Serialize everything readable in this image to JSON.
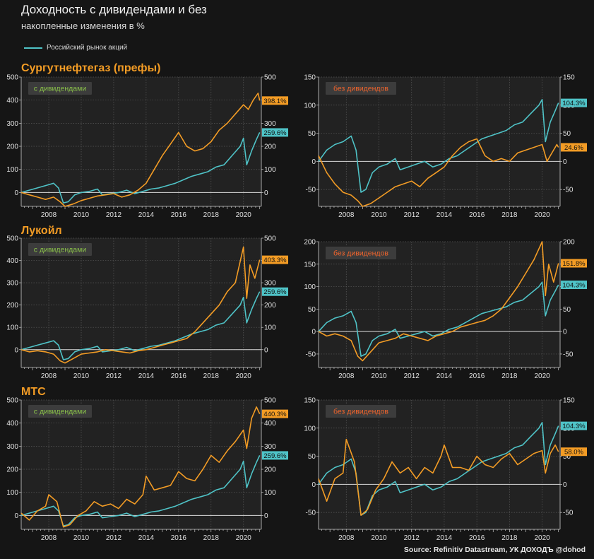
{
  "title": "Доходность с дивидендами и без",
  "subtitle": "накопленные изменения в %",
  "legend": {
    "label": "Российский рынок акций",
    "color": "#4fc3c7"
  },
  "source": "Source: Refinitiv Datastream, УК ДОХОДЪ @dohod",
  "colors": {
    "market": "#4fc3c7",
    "stock": "#f39c25",
    "with_div_tag": "#8bc34a",
    "without_div_tag": "#f0642c"
  },
  "chart_data": [
    {
      "type": "line",
      "company": "Сургутнефтегаз (префы)",
      "tag": "с дивидендами",
      "xlim": [
        2006.3,
        2021.1
      ],
      "ylim": [
        -60,
        500
      ],
      "yticks": [
        0,
        100,
        200,
        300,
        400,
        500
      ],
      "xticks": [
        "2008",
        "2010",
        "2012",
        "2014",
        "2016",
        "2018",
        "2020"
      ],
      "series": [
        {
          "name": "Российский рынок акций",
          "end_label": "259.6%",
          "x": [
            2006.3,
            2006.8,
            2007.3,
            2007.8,
            2008.3,
            2008.6,
            2008.9,
            2009.2,
            2009.6,
            2010.0,
            2010.5,
            2011.0,
            2011.3,
            2011.8,
            2012.3,
            2012.8,
            2013.3,
            2013.8,
            2014.3,
            2014.8,
            2015.3,
            2015.8,
            2016.3,
            2016.8,
            2017.3,
            2017.8,
            2018.3,
            2018.8,
            2019.3,
            2019.8,
            2020.0,
            2020.2,
            2020.5,
            2020.8,
            2021.0
          ],
          "y": [
            0,
            10,
            20,
            30,
            40,
            20,
            -45,
            -40,
            -10,
            0,
            5,
            15,
            -10,
            -5,
            0,
            10,
            -5,
            5,
            15,
            20,
            30,
            40,
            55,
            70,
            80,
            90,
            110,
            120,
            160,
            200,
            235,
            120,
            180,
            230,
            260
          ]
        },
        {
          "name": "",
          "end_label": "398.1%",
          "x": [
            2006.3,
            2006.8,
            2007.3,
            2007.8,
            2008.3,
            2008.7,
            2009.0,
            2009.5,
            2010.0,
            2010.5,
            2011.0,
            2011.5,
            2012.0,
            2012.5,
            2013.0,
            2013.5,
            2014.0,
            2014.5,
            2015.0,
            2015.5,
            2016.0,
            2016.5,
            2017.0,
            2017.5,
            2018.0,
            2018.5,
            2019.0,
            2019.5,
            2020.0,
            2020.3,
            2020.6,
            2020.9,
            2021.0
          ],
          "y": [
            0,
            -10,
            -20,
            -30,
            -20,
            -40,
            -60,
            -50,
            -35,
            -25,
            -15,
            -10,
            -5,
            -20,
            -10,
            10,
            40,
            100,
            160,
            210,
            260,
            200,
            180,
            190,
            220,
            270,
            300,
            340,
            380,
            360,
            400,
            430,
            398
          ]
        }
      ]
    },
    {
      "type": "line",
      "company": "",
      "tag": "без дивидендов",
      "xlim": [
        2006.3,
        2021.1
      ],
      "ylim": [
        -80,
        150
      ],
      "yticks": [
        -50,
        0,
        50,
        100,
        150
      ],
      "xticks": [
        "2008",
        "2010",
        "2012",
        "2014",
        "2016",
        "2018",
        "2020"
      ],
      "series": [
        {
          "name": "Российский рынок акций",
          "end_label": "104.3%",
          "x": [
            2006.3,
            2006.8,
            2007.3,
            2007.8,
            2008.3,
            2008.6,
            2008.9,
            2009.2,
            2009.6,
            2010.0,
            2010.5,
            2011.0,
            2011.3,
            2011.8,
            2012.3,
            2012.8,
            2013.3,
            2013.8,
            2014.3,
            2014.8,
            2015.3,
            2015.8,
            2016.3,
            2016.8,
            2017.3,
            2017.8,
            2018.3,
            2018.8,
            2019.3,
            2019.8,
            2020.0,
            2020.2,
            2020.5,
            2020.8,
            2021.0
          ],
          "y": [
            0,
            20,
            30,
            35,
            45,
            20,
            -55,
            -50,
            -20,
            -10,
            -5,
            5,
            -15,
            -10,
            -5,
            0,
            -10,
            -5,
            5,
            10,
            20,
            30,
            40,
            45,
            50,
            55,
            65,
            70,
            85,
            100,
            110,
            35,
            70,
            90,
            104
          ]
        },
        {
          "name": "",
          "end_label": "24.6%",
          "x": [
            2006.3,
            2006.8,
            2007.3,
            2007.8,
            2008.3,
            2008.7,
            2009.0,
            2009.5,
            2010.0,
            2010.5,
            2011.0,
            2011.5,
            2012.0,
            2012.5,
            2013.0,
            2013.5,
            2014.0,
            2014.5,
            2015.0,
            2015.5,
            2016.0,
            2016.5,
            2017.0,
            2017.5,
            2018.0,
            2018.5,
            2019.0,
            2019.5,
            2020.0,
            2020.3,
            2020.6,
            2020.9,
            2021.0
          ],
          "y": [
            10,
            -20,
            -40,
            -55,
            -60,
            -70,
            -80,
            -75,
            -65,
            -55,
            -45,
            -40,
            -35,
            -45,
            -30,
            -20,
            -10,
            10,
            25,
            35,
            40,
            10,
            0,
            5,
            0,
            15,
            20,
            25,
            30,
            0,
            15,
            30,
            25
          ]
        }
      ]
    },
    {
      "type": "line",
      "company": "Лукойл",
      "tag": "с дивидендами",
      "xlim": [
        2006.3,
        2021.1
      ],
      "ylim": [
        -80,
        500
      ],
      "yticks": [
        0,
        100,
        200,
        300,
        400,
        500
      ],
      "xticks": [
        "2008",
        "2010",
        "2012",
        "2014",
        "2016",
        "2018",
        "2020"
      ],
      "series": [
        {
          "name": "Российский рынок акций",
          "end_label": "259.6%",
          "x": [
            2006.3,
            2006.8,
            2007.3,
            2007.8,
            2008.3,
            2008.6,
            2008.9,
            2009.2,
            2009.6,
            2010.0,
            2010.5,
            2011.0,
            2011.3,
            2011.8,
            2012.3,
            2012.8,
            2013.3,
            2013.8,
            2014.3,
            2014.8,
            2015.3,
            2015.8,
            2016.3,
            2016.8,
            2017.3,
            2017.8,
            2018.3,
            2018.8,
            2019.3,
            2019.8,
            2020.0,
            2020.2,
            2020.5,
            2020.8,
            2021.0
          ],
          "y": [
            0,
            10,
            20,
            30,
            40,
            20,
            -45,
            -40,
            -10,
            0,
            5,
            15,
            -10,
            -5,
            0,
            10,
            -5,
            5,
            15,
            20,
            30,
            40,
            55,
            70,
            80,
            90,
            110,
            120,
            160,
            200,
            235,
            120,
            180,
            230,
            260
          ]
        },
        {
          "name": "",
          "end_label": "403.3%",
          "x": [
            2006.3,
            2006.8,
            2007.3,
            2007.8,
            2008.3,
            2008.7,
            2009.0,
            2009.5,
            2010.0,
            2010.5,
            2011.0,
            2011.5,
            2012.0,
            2012.5,
            2013.0,
            2013.5,
            2014.0,
            2014.5,
            2015.0,
            2015.5,
            2016.0,
            2016.5,
            2017.0,
            2017.5,
            2018.0,
            2018.5,
            2019.0,
            2019.5,
            2020.0,
            2020.2,
            2020.4,
            2020.7,
            2021.0
          ],
          "y": [
            0,
            -10,
            -5,
            -10,
            -20,
            -50,
            -60,
            -40,
            -20,
            -15,
            -10,
            0,
            -5,
            -10,
            -15,
            -5,
            0,
            10,
            20,
            30,
            40,
            50,
            80,
            120,
            160,
            200,
            260,
            300,
            460,
            230,
            380,
            320,
            403
          ]
        }
      ]
    },
    {
      "type": "line",
      "company": "",
      "tag": "без дивидендов",
      "xlim": [
        2006.3,
        2021.1
      ],
      "ylim": [
        -80,
        200
      ],
      "yticks": [
        -50,
        0,
        50,
        100,
        150,
        200
      ],
      "xticks": [
        "2008",
        "2010",
        "2012",
        "2014",
        "2016",
        "2018",
        "2020"
      ],
      "series": [
        {
          "name": "Российский рынок акций",
          "end_label": "104.3%",
          "x": [
            2006.3,
            2006.8,
            2007.3,
            2007.8,
            2008.3,
            2008.6,
            2008.9,
            2009.2,
            2009.6,
            2010.0,
            2010.5,
            2011.0,
            2011.3,
            2011.8,
            2012.3,
            2012.8,
            2013.3,
            2013.8,
            2014.3,
            2014.8,
            2015.3,
            2015.8,
            2016.3,
            2016.8,
            2017.3,
            2017.8,
            2018.3,
            2018.8,
            2019.3,
            2019.8,
            2020.0,
            2020.2,
            2020.5,
            2020.8,
            2021.0
          ],
          "y": [
            0,
            20,
            30,
            35,
            45,
            20,
            -55,
            -50,
            -20,
            -10,
            -5,
            5,
            -15,
            -10,
            -5,
            0,
            -10,
            -5,
            5,
            10,
            20,
            30,
            40,
            45,
            50,
            55,
            65,
            70,
            85,
            100,
            110,
            35,
            70,
            90,
            104
          ]
        },
        {
          "name": "",
          "end_label": "151.8%",
          "x": [
            2006.3,
            2006.8,
            2007.3,
            2007.8,
            2008.3,
            2008.7,
            2009.0,
            2009.5,
            2010.0,
            2010.5,
            2011.0,
            2011.5,
            2012.0,
            2012.5,
            2013.0,
            2013.5,
            2014.0,
            2014.5,
            2015.0,
            2015.5,
            2016.0,
            2016.5,
            2017.0,
            2017.5,
            2018.0,
            2018.5,
            2019.0,
            2019.5,
            2020.0,
            2020.2,
            2020.4,
            2020.7,
            2021.0
          ],
          "y": [
            0,
            -10,
            -5,
            -10,
            -20,
            -55,
            -65,
            -45,
            -25,
            -20,
            -15,
            -5,
            -10,
            -15,
            -20,
            -10,
            -5,
            0,
            10,
            15,
            20,
            25,
            35,
            50,
            75,
            100,
            130,
            160,
            200,
            80,
            150,
            110,
            152
          ]
        }
      ]
    },
    {
      "type": "line",
      "company": "МТС",
      "tag": "с дивидендами",
      "xlim": [
        2006.3,
        2021.1
      ],
      "ylim": [
        -60,
        500
      ],
      "yticks": [
        0,
        100,
        200,
        300,
        400,
        500
      ],
      "xticks": [
        "2008",
        "2010",
        "2012",
        "2014",
        "2016",
        "2018",
        "2020"
      ],
      "series": [
        {
          "name": "Российский рынок акций",
          "end_label": "259.6%",
          "x": [
            2006.3,
            2006.8,
            2007.3,
            2007.8,
            2008.3,
            2008.6,
            2008.9,
            2009.2,
            2009.6,
            2010.0,
            2010.5,
            2011.0,
            2011.3,
            2011.8,
            2012.3,
            2012.8,
            2013.3,
            2013.8,
            2014.3,
            2014.8,
            2015.3,
            2015.8,
            2016.3,
            2016.8,
            2017.3,
            2017.8,
            2018.3,
            2018.8,
            2019.3,
            2019.8,
            2020.0,
            2020.2,
            2020.5,
            2020.8,
            2021.0
          ],
          "y": [
            0,
            10,
            20,
            30,
            40,
            20,
            -45,
            -40,
            -10,
            0,
            5,
            15,
            -10,
            -5,
            0,
            10,
            -5,
            5,
            15,
            20,
            30,
            40,
            55,
            70,
            80,
            90,
            110,
            120,
            160,
            200,
            235,
            120,
            180,
            230,
            260
          ]
        },
        {
          "name": "",
          "end_label": "440.3%",
          "x": [
            2006.3,
            2006.8,
            2007.3,
            2007.8,
            2008.0,
            2008.5,
            2008.9,
            2009.3,
            2009.8,
            2010.3,
            2010.8,
            2011.3,
            2011.8,
            2012.3,
            2012.8,
            2013.3,
            2013.8,
            2014.0,
            2014.5,
            2015.0,
            2015.5,
            2016.0,
            2016.5,
            2017.0,
            2017.5,
            2018.0,
            2018.5,
            2019.0,
            2019.5,
            2020.0,
            2020.2,
            2020.5,
            2020.8,
            2021.0
          ],
          "y": [
            10,
            -20,
            20,
            40,
            90,
            60,
            -50,
            -40,
            0,
            20,
            60,
            40,
            50,
            30,
            70,
            50,
            90,
            170,
            110,
            120,
            130,
            190,
            160,
            150,
            200,
            260,
            230,
            280,
            320,
            370,
            290,
            420,
            470,
            440
          ]
        }
      ]
    },
    {
      "type": "line",
      "company": "",
      "tag": "без дивидендов",
      "xlim": [
        2006.3,
        2021.1
      ],
      "ylim": [
        -80,
        150
      ],
      "yticks": [
        -50,
        0,
        50,
        100,
        150
      ],
      "xticks": [
        "2008",
        "2010",
        "2012",
        "2014",
        "2016",
        "2018",
        "2020"
      ],
      "series": [
        {
          "name": "Российский рынок акций",
          "end_label": "104.3%",
          "x": [
            2006.3,
            2006.8,
            2007.3,
            2007.8,
            2008.3,
            2008.6,
            2008.9,
            2009.2,
            2009.6,
            2010.0,
            2010.5,
            2011.0,
            2011.3,
            2011.8,
            2012.3,
            2012.8,
            2013.3,
            2013.8,
            2014.3,
            2014.8,
            2015.3,
            2015.8,
            2016.3,
            2016.8,
            2017.3,
            2017.8,
            2018.3,
            2018.8,
            2019.3,
            2019.8,
            2020.0,
            2020.2,
            2020.5,
            2020.8,
            2021.0
          ],
          "y": [
            0,
            20,
            30,
            35,
            45,
            20,
            -55,
            -50,
            -20,
            -10,
            -5,
            5,
            -15,
            -10,
            -5,
            0,
            -10,
            -5,
            5,
            10,
            20,
            30,
            40,
            45,
            50,
            55,
            65,
            70,
            85,
            100,
            110,
            35,
            70,
            90,
            104
          ]
        },
        {
          "name": "",
          "end_label": "58.0%",
          "x": [
            2006.3,
            2006.8,
            2007.3,
            2007.8,
            2008.0,
            2008.5,
            2008.9,
            2009.3,
            2009.8,
            2010.3,
            2010.8,
            2011.3,
            2011.8,
            2012.3,
            2012.8,
            2013.3,
            2013.8,
            2014.0,
            2014.5,
            2015.0,
            2015.5,
            2016.0,
            2016.5,
            2017.0,
            2017.5,
            2018.0,
            2018.5,
            2019.0,
            2019.5,
            2020.0,
            2020.2,
            2020.5,
            2020.8,
            2021.0
          ],
          "y": [
            10,
            -30,
            10,
            20,
            80,
            40,
            -55,
            -45,
            -10,
            10,
            40,
            20,
            30,
            10,
            30,
            20,
            50,
            70,
            30,
            30,
            25,
            50,
            35,
            30,
            45,
            55,
            35,
            45,
            55,
            60,
            20,
            55,
            70,
            58
          ]
        }
      ]
    }
  ]
}
